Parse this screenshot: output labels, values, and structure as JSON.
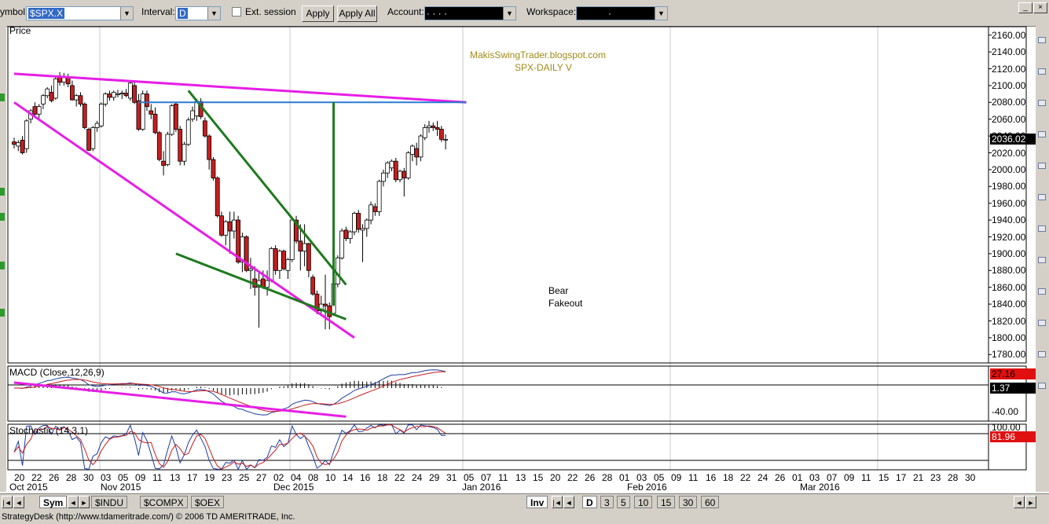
{
  "toolbar": {
    "symbol_label": "ymbol:",
    "symbol_value": "$SPX.X",
    "interval_label": "Interval:",
    "interval_value": "D",
    "ext_session_label": "Ext. session",
    "apply_label": "Apply",
    "apply_all_label": "Apply All",
    "account_label": "Account:",
    "account_value": "·  ·  ·  ·",
    "workspace_label": "Workspace:",
    "workspace_value": "·"
  },
  "annotations": {
    "blog": "MakisSwingTrader.blogspot.com",
    "chart_name": "SPX-DAILY  V",
    "bear_line1": "Bear",
    "bear_line2": "Fakeout"
  },
  "panes": {
    "price_label": "Price",
    "macd_label": "MACD (Close,12,26,9)",
    "stoch_label": "Stochastic (14,3,1)"
  },
  "price_axis": [
    "2160.00",
    "2140.00",
    "2120.00",
    "2100.00",
    "2080.00",
    "2060.00",
    "2040.00",
    "2020.00",
    "2000.00",
    "1980.00",
    "1960.00",
    "1940.00",
    "1920.00",
    "1900.00",
    "1880.00",
    "1860.00",
    "1840.00",
    "1820.00",
    "1800.00",
    "1780.00"
  ],
  "current_price": "2036.02",
  "macd_axis": {
    "value": "27.16",
    "signal": "1.37",
    "low": "-40.00"
  },
  "stoch_axis": {
    "top": "100.00",
    "value": "81.96"
  },
  "x_days": [
    "20",
    "22",
    "26",
    "28",
    "30",
    "03",
    "05",
    "09",
    "11",
    "13",
    "17",
    "19",
    "23",
    "25",
    "27",
    "02",
    "04",
    "08",
    "10",
    "14",
    "16",
    "18",
    "22",
    "24",
    "29",
    "31",
    "05",
    "07",
    "11",
    "13",
    "15",
    "20",
    "22",
    "26",
    "28",
    "01",
    "03",
    "05",
    "09",
    "11",
    "16",
    "18",
    "22",
    "24",
    "26",
    "01",
    "03",
    "07",
    "09",
    "11",
    "15",
    "17",
    "21",
    "23",
    "28",
    "30"
  ],
  "x_months": [
    "Oct 2015",
    "Nov 2015",
    "Dec 2015",
    "Jan 2016",
    "Feb 2016",
    "Mar 2016"
  ],
  "bottom": {
    "sym_tab": "Sym",
    "tabs": [
      "$INDU",
      "$COMPX",
      "$OEX"
    ],
    "inv_tab": "Inv",
    "periods": [
      "D",
      "3",
      "5",
      "10",
      "15",
      "30",
      "60"
    ]
  },
  "status_text": "StrategyDesk (http://www.tdameritrade.com/) © 2006 TD AMERITRADE, Inc.",
  "colors": {
    "up": "#ffffff",
    "down": "#c81e1e",
    "trendline_magenta": "#e61ee6",
    "trendline_green": "#1e7a1e",
    "resistance_blue": "#2a7ad0",
    "price_box": "#000000"
  },
  "chart_data": {
    "type": "candlestick",
    "symbol": "$SPX.X",
    "interval": "D",
    "yrange": [
      1770,
      2170
    ],
    "candles": [
      {
        "o": 2033,
        "h": 2038,
        "l": 2025,
        "c": 2030
      },
      {
        "o": 2028,
        "h": 2035,
        "l": 2022,
        "c": 2032
      },
      {
        "o": 2035,
        "h": 2040,
        "l": 2018,
        "c": 2020
      },
      {
        "o": 2025,
        "h": 2060,
        "l": 2020,
        "c": 2058
      },
      {
        "o": 2060,
        "h": 2072,
        "l": 2055,
        "c": 2070
      },
      {
        "o": 2075,
        "h": 2080,
        "l": 2062,
        "c": 2066
      },
      {
        "o": 2066,
        "h": 2078,
        "l": 2060,
        "c": 2075
      },
      {
        "o": 2078,
        "h": 2090,
        "l": 2072,
        "c": 2088
      },
      {
        "o": 2088,
        "h": 2098,
        "l": 2085,
        "c": 2096
      },
      {
        "o": 2092,
        "h": 2100,
        "l": 2080,
        "c": 2082
      },
      {
        "o": 2085,
        "h": 2112,
        "l": 2083,
        "c": 2108
      },
      {
        "o": 2110,
        "h": 2116,
        "l": 2100,
        "c": 2104
      },
      {
        "o": 2104,
        "h": 2115,
        "l": 2100,
        "c": 2111
      },
      {
        "o": 2110,
        "h": 2114,
        "l": 2098,
        "c": 2102
      },
      {
        "o": 2100,
        "h": 2106,
        "l": 2082,
        "c": 2083
      },
      {
        "o": 2083,
        "h": 2090,
        "l": 2075,
        "c": 2088
      },
      {
        "o": 2088,
        "h": 2092,
        "l": 2075,
        "c": 2078
      },
      {
        "o": 2078,
        "h": 2080,
        "l": 2048,
        "c": 2050
      },
      {
        "o": 2048,
        "h": 2050,
        "l": 2022,
        "c": 2023
      },
      {
        "o": 2025,
        "h": 2052,
        "l": 2022,
        "c": 2050
      },
      {
        "o": 2050,
        "h": 2058,
        "l": 2045,
        "c": 2055
      },
      {
        "o": 2052,
        "h": 2080,
        "l": 2050,
        "c": 2078
      },
      {
        "o": 2078,
        "h": 2092,
        "l": 2075,
        "c": 2090
      },
      {
        "o": 2090,
        "h": 2094,
        "l": 2082,
        "c": 2086
      },
      {
        "o": 2086,
        "h": 2094,
        "l": 2082,
        "c": 2092
      },
      {
        "o": 2089,
        "h": 2095,
        "l": 2086,
        "c": 2090
      },
      {
        "o": 2090,
        "h": 2094,
        "l": 2084,
        "c": 2091
      },
      {
        "o": 2091,
        "h": 2096,
        "l": 2086,
        "c": 2088
      },
      {
        "o": 2085,
        "h": 2105,
        "l": 2082,
        "c": 2103
      },
      {
        "o": 2100,
        "h": 2104,
        "l": 2078,
        "c": 2080
      },
      {
        "o": 2082,
        "h": 2090,
        "l": 2046,
        "c": 2048
      },
      {
        "o": 2048,
        "h": 2094,
        "l": 2046,
        "c": 2090
      },
      {
        "o": 2090,
        "h": 2094,
        "l": 2070,
        "c": 2075
      },
      {
        "o": 2070,
        "h": 2078,
        "l": 2060,
        "c": 2066
      },
      {
        "o": 2066,
        "h": 2074,
        "l": 2042,
        "c": 2044
      },
      {
        "o": 2044,
        "h": 2046,
        "l": 2010,
        "c": 2012
      },
      {
        "o": 2010,
        "h": 2022,
        "l": 1993,
        "c": 2005
      },
      {
        "o": 2006,
        "h": 2045,
        "l": 2004,
        "c": 2042
      },
      {
        "o": 2042,
        "h": 2078,
        "l": 2040,
        "c": 2076
      },
      {
        "o": 2078,
        "h": 2080,
        "l": 2045,
        "c": 2048
      },
      {
        "o": 2048,
        "h": 2052,
        "l": 2005,
        "c": 2010
      },
      {
        "o": 2010,
        "h": 2033,
        "l": 2005,
        "c": 2030
      },
      {
        "o": 2030,
        "h": 2062,
        "l": 2028,
        "c": 2059
      },
      {
        "o": 2060,
        "h": 2075,
        "l": 2057,
        "c": 2070
      },
      {
        "o": 2064,
        "h": 2084,
        "l": 2058,
        "c": 2081
      },
      {
        "o": 2081,
        "h": 2085,
        "l": 2060,
        "c": 2063
      },
      {
        "o": 2058,
        "h": 2062,
        "l": 2038,
        "c": 2040
      },
      {
        "o": 2040,
        "h": 2042,
        "l": 2000,
        "c": 2012
      },
      {
        "o": 2012,
        "h": 2015,
        "l": 1987,
        "c": 1990
      },
      {
        "o": 1990,
        "h": 1992,
        "l": 1943,
        "c": 1945
      },
      {
        "o": 1945,
        "h": 1950,
        "l": 1920,
        "c": 1922
      },
      {
        "o": 1922,
        "h": 1940,
        "l": 1910,
        "c": 1938
      },
      {
        "o": 1938,
        "h": 1950,
        "l": 1900,
        "c": 1927
      },
      {
        "o": 1927,
        "h": 1950,
        "l": 1918,
        "c": 1940
      },
      {
        "o": 1940,
        "h": 1945,
        "l": 1888,
        "c": 1890
      },
      {
        "o": 1890,
        "h": 1925,
        "l": 1878,
        "c": 1920
      },
      {
        "o": 1920,
        "h": 1922,
        "l": 1878,
        "c": 1880
      },
      {
        "o": 1880,
        "h": 1895,
        "l": 1858,
        "c": 1882
      },
      {
        "o": 1870,
        "h": 1885,
        "l": 1850,
        "c": 1860
      },
      {
        "o": 1860,
        "h": 1878,
        "l": 1812,
        "c": 1868
      },
      {
        "o": 1870,
        "h": 1880,
        "l": 1858,
        "c": 1860
      },
      {
        "o": 1860,
        "h": 1880,
        "l": 1850,
        "c": 1868
      },
      {
        "o": 1868,
        "h": 1908,
        "l": 1866,
        "c": 1906
      },
      {
        "o": 1906,
        "h": 1910,
        "l": 1875,
        "c": 1880
      },
      {
        "o": 1880,
        "h": 1905,
        "l": 1870,
        "c": 1903
      },
      {
        "o": 1903,
        "h": 1905,
        "l": 1880,
        "c": 1882
      },
      {
        "o": 1880,
        "h": 1895,
        "l": 1870,
        "c": 1893
      },
      {
        "o": 1893,
        "h": 1942,
        "l": 1890,
        "c": 1940
      },
      {
        "o": 1940,
        "h": 1945,
        "l": 1912,
        "c": 1915
      },
      {
        "o": 1915,
        "h": 1935,
        "l": 1880,
        "c": 1903
      },
      {
        "o": 1903,
        "h": 1935,
        "l": 1885,
        "c": 1912
      },
      {
        "o": 1912,
        "h": 1913,
        "l": 1872,
        "c": 1880
      },
      {
        "o": 1872,
        "h": 1875,
        "l": 1850,
        "c": 1852
      },
      {
        "o": 1852,
        "h": 1856,
        "l": 1828,
        "c": 1832
      },
      {
        "o": 1832,
        "h": 1850,
        "l": 1829,
        "c": 1840
      },
      {
        "o": 1840,
        "h": 1875,
        "l": 1810,
        "c": 1838
      },
      {
        "o": 1838,
        "h": 1842,
        "l": 1810,
        "c": 1825
      },
      {
        "o": 1829,
        "h": 1866,
        "l": 1826,
        "c": 1864
      },
      {
        "o": 1864,
        "h": 1898,
        "l": 1860,
        "c": 1895
      },
      {
        "o": 1895,
        "h": 1930,
        "l": 1893,
        "c": 1927
      },
      {
        "o": 1928,
        "h": 1932,
        "l": 1915,
        "c": 1918
      },
      {
        "o": 1918,
        "h": 1928,
        "l": 1912,
        "c": 1926
      },
      {
        "o": 1926,
        "h": 1950,
        "l": 1922,
        "c": 1948
      },
      {
        "o": 1948,
        "h": 1952,
        "l": 1925,
        "c": 1929
      },
      {
        "o": 1928,
        "h": 1935,
        "l": 1890,
        "c": 1930
      },
      {
        "o": 1930,
        "h": 1942,
        "l": 1920,
        "c": 1940
      },
      {
        "o": 1940,
        "h": 1962,
        "l": 1935,
        "c": 1958
      },
      {
        "o": 1956,
        "h": 1960,
        "l": 1945,
        "c": 1950
      },
      {
        "o": 1950,
        "h": 1988,
        "l": 1945,
        "c": 1986
      },
      {
        "o": 1986,
        "h": 2000,
        "l": 1980,
        "c": 1996
      },
      {
        "o": 1996,
        "h": 2010,
        "l": 1990,
        "c": 2008
      },
      {
        "o": 2002,
        "h": 2012,
        "l": 1998,
        "c": 2010
      },
      {
        "o": 2010,
        "h": 2014,
        "l": 1985,
        "c": 1988
      },
      {
        "o": 1988,
        "h": 2000,
        "l": 1985,
        "c": 1998
      },
      {
        "o": 1998,
        "h": 2002,
        "l": 1968,
        "c": 1990
      },
      {
        "o": 1990,
        "h": 2022,
        "l": 1988,
        "c": 2020
      },
      {
        "o": 2018,
        "h": 2030,
        "l": 2010,
        "c": 2028
      },
      {
        "o": 2025,
        "h": 2032,
        "l": 2005,
        "c": 2015
      },
      {
        "o": 2015,
        "h": 2042,
        "l": 2010,
        "c": 2040
      },
      {
        "o": 2038,
        "h": 2054,
        "l": 2035,
        "c": 2050
      },
      {
        "o": 2050,
        "h": 2058,
        "l": 2044,
        "c": 2052
      },
      {
        "o": 2052,
        "h": 2056,
        "l": 2046,
        "c": 2050
      },
      {
        "o": 2050,
        "h": 2058,
        "l": 2040,
        "c": 2048
      },
      {
        "o": 2048,
        "h": 2052,
        "l": 2033,
        "c": 2036
      },
      {
        "o": 2036,
        "h": 2042,
        "l": 2024,
        "c": 2036
      }
    ],
    "trendlines": [
      {
        "name": "upper-magenta",
        "color": "magenta",
        "from": [
          0,
          2114
        ],
        "to": [
          109,
          2080
        ]
      },
      {
        "name": "lower-magenta",
        "color": "magenta",
        "from": [
          0,
          2080
        ],
        "to": [
          82,
          1800
        ]
      },
      {
        "name": "green-down",
        "color": "green",
        "from": [
          42,
          2094
        ],
        "to": [
          80,
          1863
        ]
      },
      {
        "name": "green-low",
        "color": "green",
        "from": [
          39,
          1900
        ],
        "to": [
          80,
          1822
        ]
      },
      {
        "name": "blue-resistance",
        "color": "blue",
        "from": [
          30,
          2080
        ],
        "to": [
          109,
          2080
        ]
      },
      {
        "name": "green-measured-move",
        "color": "green",
        "from": [
          77,
          1838
        ],
        "to": [
          77,
          2080
        ]
      }
    ],
    "macd_range": [
      -60,
      40
    ],
    "stoch_range": [
      0,
      100
    ]
  }
}
